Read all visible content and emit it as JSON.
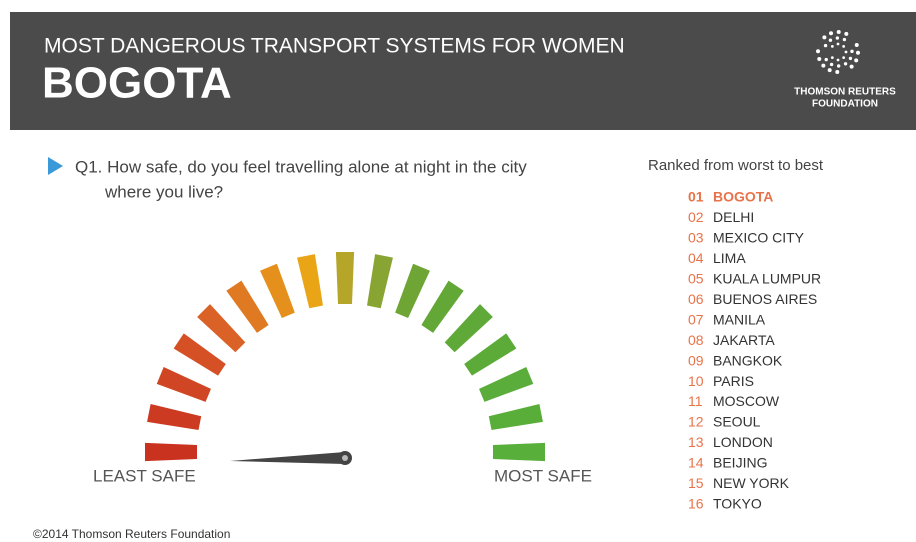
{
  "header": {
    "subtitle": "MOST DANGEROUS TRANSPORT SYSTEMS FOR WOMEN",
    "title": "BOGOTA",
    "logo_lines": [
      "THOMSON REUTERS",
      "FOUNDATION"
    ]
  },
  "question": {
    "lines": [
      "Q1. How safe, do you feel travelling alone at night in the city",
      "where you live?"
    ]
  },
  "gauge": {
    "min_label": "LEAST SAFE",
    "max_label": "MOST SAFE"
  },
  "ranking": {
    "title": "Ranked from worst to best",
    "items": [
      {
        "rank": "01",
        "city": "BOGOTA"
      },
      {
        "rank": "02",
        "city": "DELHI"
      },
      {
        "rank": "03",
        "city": "MEXICO CITY"
      },
      {
        "rank": "04",
        "city": "LIMA"
      },
      {
        "rank": "05",
        "city": "KUALA LUMPUR"
      },
      {
        "rank": "06",
        "city": "BUENOS AIRES"
      },
      {
        "rank": "07",
        "city": "MANILA"
      },
      {
        "rank": "08",
        "city": "JAKARTA"
      },
      {
        "rank": "09",
        "city": "BANGKOK"
      },
      {
        "rank": "10",
        "city": "PARIS"
      },
      {
        "rank": "11",
        "city": "MOSCOW"
      },
      {
        "rank": "12",
        "city": "SEOUL"
      },
      {
        "rank": "13",
        "city": "LONDON"
      },
      {
        "rank": "14",
        "city": "BEIJING"
      },
      {
        "rank": "15",
        "city": "NEW YORK"
      },
      {
        "rank": "16",
        "city": "TOKYO"
      }
    ]
  },
  "footer": "©2014 Thomson Reuters Foundation"
}
